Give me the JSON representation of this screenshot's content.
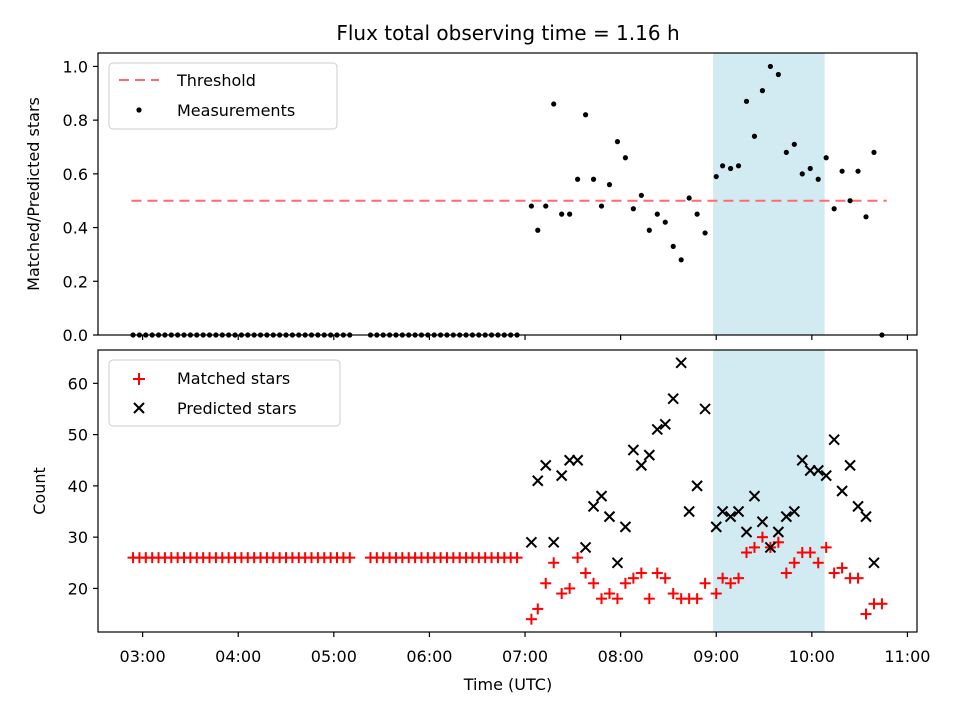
{
  "chart_data": {
    "title": "Flux total observing time = 1.16 h",
    "xlabel": "Time (UTC)",
    "xlim": [
      "02:32",
      "11:06"
    ],
    "xticks": [
      "03:00",
      "04:00",
      "05:00",
      "06:00",
      "07:00",
      "08:00",
      "09:00",
      "10:00",
      "11:00"
    ],
    "highlight": {
      "x_start": "08:58",
      "x_end": "10:08",
      "color": "#add8e6"
    },
    "top": {
      "type": "scatter",
      "ylabel": "Matched/Predicted stars",
      "ylim": [
        0,
        1.05
      ],
      "yticks": [
        "0.0",
        "0.2",
        "0.4",
        "0.6",
        "0.8",
        "1.0"
      ],
      "legend_position": "upper-left",
      "threshold": {
        "name": "Threshold",
        "value": 0.5,
        "x_start": "02:53",
        "x_end": "10:47",
        "color": "#ff6b6b"
      },
      "measurements": {
        "name": "Measurements",
        "color": "#000000",
        "points": [
          [
            "02:54",
            0
          ],
          [
            "02:58",
            0
          ],
          [
            "03:02",
            0
          ],
          [
            "03:06",
            0
          ],
          [
            "03:10",
            0
          ],
          [
            "03:14",
            0
          ],
          [
            "03:18",
            0
          ],
          [
            "03:22",
            0
          ],
          [
            "03:26",
            0
          ],
          [
            "03:30",
            0
          ],
          [
            "03:34",
            0
          ],
          [
            "03:38",
            0
          ],
          [
            "03:42",
            0
          ],
          [
            "03:46",
            0
          ],
          [
            "03:50",
            0
          ],
          [
            "03:54",
            0
          ],
          [
            "03:58",
            0
          ],
          [
            "04:02",
            0
          ],
          [
            "04:06",
            0
          ],
          [
            "04:10",
            0
          ],
          [
            "04:14",
            0
          ],
          [
            "04:18",
            0
          ],
          [
            "04:22",
            0
          ],
          [
            "04:26",
            0
          ],
          [
            "04:30",
            0
          ],
          [
            "04:34",
            0
          ],
          [
            "04:38",
            0
          ],
          [
            "04:42",
            0
          ],
          [
            "04:46",
            0
          ],
          [
            "04:50",
            0
          ],
          [
            "04:54",
            0
          ],
          [
            "04:58",
            0
          ],
          [
            "05:02",
            0
          ],
          [
            "05:06",
            0
          ],
          [
            "05:10",
            0
          ],
          [
            "05:23",
            0
          ],
          [
            "05:27",
            0
          ],
          [
            "05:31",
            0
          ],
          [
            "05:35",
            0
          ],
          [
            "05:39",
            0
          ],
          [
            "05:43",
            0
          ],
          [
            "05:47",
            0
          ],
          [
            "05:51",
            0
          ],
          [
            "05:55",
            0
          ],
          [
            "05:59",
            0
          ],
          [
            "06:03",
            0
          ],
          [
            "06:07",
            0
          ],
          [
            "06:11",
            0
          ],
          [
            "06:15",
            0
          ],
          [
            "06:19",
            0
          ],
          [
            "06:23",
            0
          ],
          [
            "06:27",
            0
          ],
          [
            "06:31",
            0
          ],
          [
            "06:35",
            0
          ],
          [
            "06:39",
            0
          ],
          [
            "06:43",
            0
          ],
          [
            "06:47",
            0
          ],
          [
            "06:51",
            0
          ],
          [
            "06:55",
            0
          ],
          [
            "07:04",
            0.48
          ],
          [
            "07:08",
            0.39
          ],
          [
            "07:13",
            0.48
          ],
          [
            "07:18",
            0.86
          ],
          [
            "07:23",
            0.45
          ],
          [
            "07:28",
            0.45
          ],
          [
            "07:33",
            0.58
          ],
          [
            "07:38",
            0.82
          ],
          [
            "07:43",
            0.58
          ],
          [
            "07:48",
            0.48
          ],
          [
            "07:53",
            0.56
          ],
          [
            "07:58",
            0.72
          ],
          [
            "08:03",
            0.66
          ],
          [
            "08:08",
            0.47
          ],
          [
            "08:13",
            0.52
          ],
          [
            "08:18",
            0.39
          ],
          [
            "08:23",
            0.45
          ],
          [
            "08:28",
            0.42
          ],
          [
            "08:33",
            0.33
          ],
          [
            "08:38",
            0.28
          ],
          [
            "08:43",
            0.51
          ],
          [
            "08:48",
            0.45
          ],
          [
            "08:53",
            0.38
          ],
          [
            "09:00",
            0.59
          ],
          [
            "09:04",
            0.63
          ],
          [
            "09:09",
            0.62
          ],
          [
            "09:14",
            0.63
          ],
          [
            "09:19",
            0.87
          ],
          [
            "09:24",
            0.74
          ],
          [
            "09:29",
            0.91
          ],
          [
            "09:34",
            1.0
          ],
          [
            "09:39",
            0.97
          ],
          [
            "09:44",
            0.68
          ],
          [
            "09:49",
            0.71
          ],
          [
            "09:54",
            0.6
          ],
          [
            "09:59",
            0.62
          ],
          [
            "10:04",
            0.58
          ],
          [
            "10:09",
            0.66
          ],
          [
            "10:14",
            0.47
          ],
          [
            "10:19",
            0.61
          ],
          [
            "10:24",
            0.5
          ],
          [
            "10:29",
            0.61
          ],
          [
            "10:34",
            0.44
          ],
          [
            "10:39",
            0.68
          ],
          [
            "10:44",
            0
          ]
        ]
      }
    },
    "bottom": {
      "type": "scatter",
      "ylabel": "Count",
      "ylim": [
        11.5,
        66.5
      ],
      "yticks": [
        "20",
        "30",
        "40",
        "50",
        "60"
      ],
      "legend_position": "upper-left",
      "matched": {
        "name": "Matched stars",
        "marker": "+",
        "color": "#ff0000",
        "points": [
          [
            "02:54",
            26
          ],
          [
            "02:58",
            26
          ],
          [
            "03:02",
            26
          ],
          [
            "03:06",
            26
          ],
          [
            "03:10",
            26
          ],
          [
            "03:14",
            26
          ],
          [
            "03:18",
            26
          ],
          [
            "03:22",
            26
          ],
          [
            "03:26",
            26
          ],
          [
            "03:30",
            26
          ],
          [
            "03:34",
            26
          ],
          [
            "03:38",
            26
          ],
          [
            "03:42",
            26
          ],
          [
            "03:46",
            26
          ],
          [
            "03:50",
            26
          ],
          [
            "03:54",
            26
          ],
          [
            "03:58",
            26
          ],
          [
            "04:02",
            26
          ],
          [
            "04:06",
            26
          ],
          [
            "04:10",
            26
          ],
          [
            "04:14",
            26
          ],
          [
            "04:18",
            26
          ],
          [
            "04:22",
            26
          ],
          [
            "04:26",
            26
          ],
          [
            "04:30",
            26
          ],
          [
            "04:34",
            26
          ],
          [
            "04:38",
            26
          ],
          [
            "04:42",
            26
          ],
          [
            "04:46",
            26
          ],
          [
            "04:50",
            26
          ],
          [
            "04:54",
            26
          ],
          [
            "04:58",
            26
          ],
          [
            "05:02",
            26
          ],
          [
            "05:06",
            26
          ],
          [
            "05:10",
            26
          ],
          [
            "05:23",
            26
          ],
          [
            "05:27",
            26
          ],
          [
            "05:31",
            26
          ],
          [
            "05:35",
            26
          ],
          [
            "05:39",
            26
          ],
          [
            "05:43",
            26
          ],
          [
            "05:47",
            26
          ],
          [
            "05:51",
            26
          ],
          [
            "05:55",
            26
          ],
          [
            "05:59",
            26
          ],
          [
            "06:03",
            26
          ],
          [
            "06:07",
            26
          ],
          [
            "06:11",
            26
          ],
          [
            "06:15",
            26
          ],
          [
            "06:19",
            26
          ],
          [
            "06:23",
            26
          ],
          [
            "06:27",
            26
          ],
          [
            "06:31",
            26
          ],
          [
            "06:35",
            26
          ],
          [
            "06:39",
            26
          ],
          [
            "06:43",
            26
          ],
          [
            "06:47",
            26
          ],
          [
            "06:51",
            26
          ],
          [
            "06:55",
            26
          ],
          [
            "07:04",
            14
          ],
          [
            "07:08",
            16
          ],
          [
            "07:13",
            21
          ],
          [
            "07:18",
            25
          ],
          [
            "07:23",
            19
          ],
          [
            "07:28",
            20
          ],
          [
            "07:33",
            26
          ],
          [
            "07:38",
            23
          ],
          [
            "07:43",
            21
          ],
          [
            "07:48",
            18
          ],
          [
            "07:53",
            19
          ],
          [
            "07:58",
            18
          ],
          [
            "08:03",
            21
          ],
          [
            "08:08",
            22
          ],
          [
            "08:13",
            23
          ],
          [
            "08:18",
            18
          ],
          [
            "08:23",
            23
          ],
          [
            "08:28",
            22
          ],
          [
            "08:33",
            19
          ],
          [
            "08:38",
            18
          ],
          [
            "08:43",
            18
          ],
          [
            "08:48",
            18
          ],
          [
            "08:53",
            21
          ],
          [
            "09:00",
            19
          ],
          [
            "09:04",
            22
          ],
          [
            "09:09",
            21
          ],
          [
            "09:14",
            22
          ],
          [
            "09:19",
            27
          ],
          [
            "09:24",
            28
          ],
          [
            "09:29",
            30
          ],
          [
            "09:34",
            28
          ],
          [
            "09:39",
            29
          ],
          [
            "09:44",
            23
          ],
          [
            "09:49",
            25
          ],
          [
            "09:54",
            27
          ],
          [
            "09:59",
            27
          ],
          [
            "10:04",
            25
          ],
          [
            "10:09",
            28
          ],
          [
            "10:14",
            23
          ],
          [
            "10:19",
            24
          ],
          [
            "10:24",
            22
          ],
          [
            "10:29",
            22
          ],
          [
            "10:34",
            15
          ],
          [
            "10:39",
            17
          ],
          [
            "10:44",
            17
          ]
        ]
      },
      "predicted": {
        "name": "Predicted stars",
        "marker": "x",
        "color": "#000000",
        "points": [
          [
            "07:04",
            29
          ],
          [
            "07:08",
            41
          ],
          [
            "07:13",
            44
          ],
          [
            "07:18",
            29
          ],
          [
            "07:23",
            42
          ],
          [
            "07:28",
            45
          ],
          [
            "07:33",
            45
          ],
          [
            "07:38",
            28
          ],
          [
            "07:43",
            36
          ],
          [
            "07:48",
            38
          ],
          [
            "07:53",
            34
          ],
          [
            "07:58",
            25
          ],
          [
            "08:03",
            32
          ],
          [
            "08:08",
            47
          ],
          [
            "08:13",
            44
          ],
          [
            "08:18",
            46
          ],
          [
            "08:23",
            51
          ],
          [
            "08:28",
            52
          ],
          [
            "08:33",
            57
          ],
          [
            "08:38",
            64
          ],
          [
            "08:43",
            35
          ],
          [
            "08:48",
            40
          ],
          [
            "08:53",
            55
          ],
          [
            "09:00",
            32
          ],
          [
            "09:04",
            35
          ],
          [
            "09:09",
            34
          ],
          [
            "09:14",
            35
          ],
          [
            "09:19",
            31
          ],
          [
            "09:24",
            38
          ],
          [
            "09:29",
            33
          ],
          [
            "09:34",
            28
          ],
          [
            "09:39",
            31
          ],
          [
            "09:44",
            34
          ],
          [
            "09:49",
            35
          ],
          [
            "09:54",
            45
          ],
          [
            "09:59",
            43
          ],
          [
            "10:04",
            43
          ],
          [
            "10:09",
            42
          ],
          [
            "10:14",
            49
          ],
          [
            "10:19",
            39
          ],
          [
            "10:24",
            44
          ],
          [
            "10:29",
            36
          ],
          [
            "10:34",
            34
          ],
          [
            "10:39",
            25
          ]
        ]
      }
    }
  }
}
